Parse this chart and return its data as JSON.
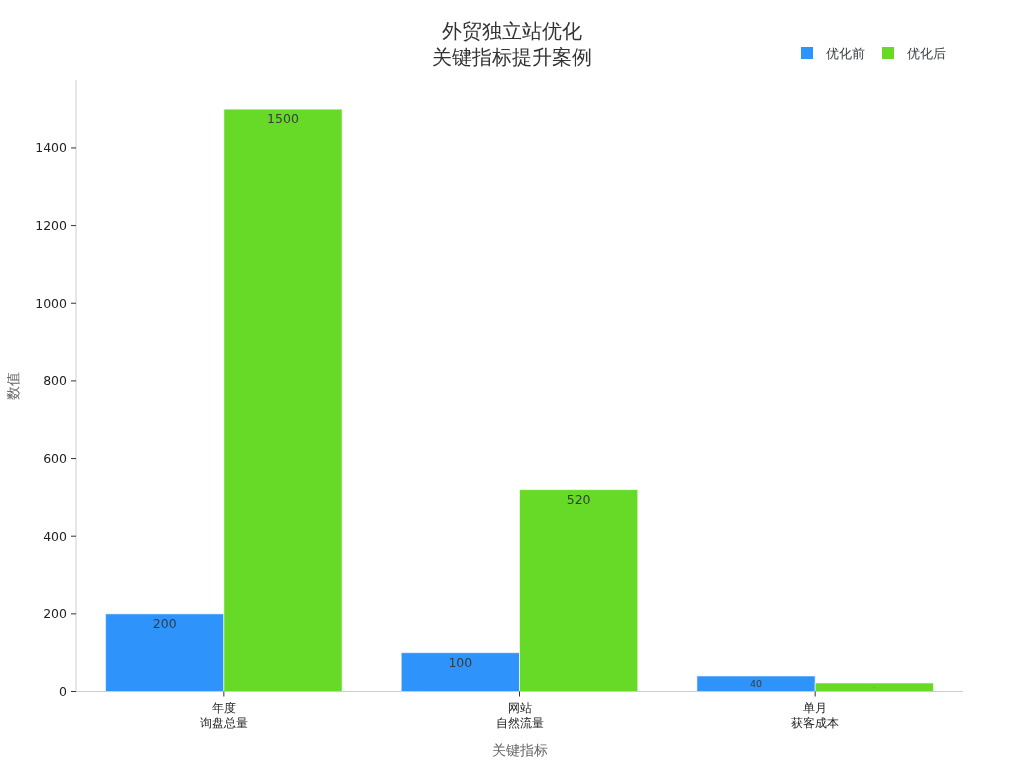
{
  "chart_data": {
    "type": "bar",
    "title": "外贸独立站优化关键指标提升案例",
    "xlabel": "关键指标",
    "ylabel": "数值",
    "categories": [
      "年度询盘总量",
      "网站自然流量",
      "单月获客成本"
    ],
    "series": [
      {
        "name": "优化前",
        "color": "#2e93fa",
        "values": [
          200,
          100,
          40
        ],
        "value_labels": [
          "200",
          "100",
          "40"
        ]
      },
      {
        "name": "优化后",
        "color": "#66da26",
        "values": [
          1500,
          520,
          22
        ],
        "value_labels": [
          "1500",
          "520",
          "-"
        ]
      }
    ],
    "ylim": [
      0,
      1575
    ],
    "yticks": [
      0,
      200,
      400,
      600,
      800,
      1000,
      1200,
      1400
    ],
    "legend": "top right"
  }
}
